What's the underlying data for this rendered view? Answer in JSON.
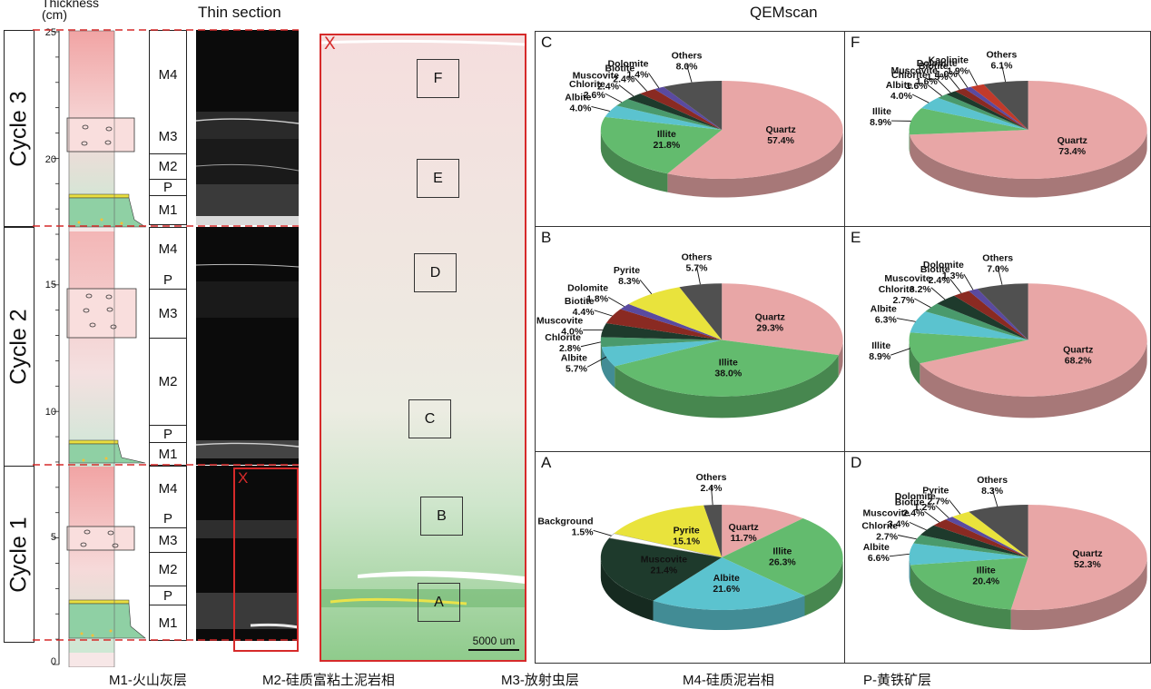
{
  "headers": {
    "thickness": "Thickness\n(cm)",
    "thin_section": "Thin section",
    "qemscan": "QEMscan"
  },
  "cycles": [
    "Cycle 3",
    "Cycle 2",
    "Cycle 1"
  ],
  "scale_ticks": [
    "25",
    "20",
    "15",
    "10",
    "5",
    "0"
  ],
  "units": {
    "cycle3": [
      "M4",
      "M3",
      "M2",
      "P",
      "M1"
    ],
    "cycle2": [
      "M4",
      "P",
      "M3",
      "M2",
      "P",
      "M1"
    ],
    "cycle1": [
      "M4",
      "P",
      "M3",
      "M2",
      "P",
      "M1"
    ]
  },
  "thin_marker": "X",
  "qemscan_marker": "X",
  "qemscan_boxes": [
    "F",
    "E",
    "D",
    "C",
    "B",
    "A"
  ],
  "scale_bar": "5000 um",
  "legend": [
    "M1-火山灰层",
    "M2-硅质富粘土泥岩相",
    "M3-放射虫层",
    "M4-硅质泥岩相",
    "P-黄铁矿层"
  ],
  "chart_data": [
    {
      "type": "pie",
      "panel": "C",
      "series": [
        {
          "name": "Quartz",
          "value": 57.4
        },
        {
          "name": "Illite",
          "value": 21.8
        },
        {
          "name": "Albite",
          "value": 4.0
        },
        {
          "name": "Chlorite",
          "value": 2.6
        },
        {
          "name": "Muscovite",
          "value": 2.4
        },
        {
          "name": "Biotite",
          "value": 2.4
        },
        {
          "name": "Dolomite",
          "value": 1.4
        },
        {
          "name": "Others",
          "value": 8.0
        }
      ]
    },
    {
      "type": "pie",
      "panel": "F",
      "series": [
        {
          "name": "Quartz",
          "value": 73.4
        },
        {
          "name": "Illite",
          "value": 8.9
        },
        {
          "name": "Albite",
          "value": 4.0
        },
        {
          "name": "Chlorite",
          "value": 1.6
        },
        {
          "name": "Muscovite",
          "value": 1.6
        },
        {
          "name": "Biotite",
          "value": 1.5
        },
        {
          "name": "Dolomite",
          "value": 1.0
        },
        {
          "name": "Kaolinite",
          "value": 1.9
        },
        {
          "name": "Others",
          "value": 6.1
        }
      ]
    },
    {
      "type": "pie",
      "panel": "B",
      "series": [
        {
          "name": "Quartz",
          "value": 29.3
        },
        {
          "name": "Illite",
          "value": 38.0
        },
        {
          "name": "Albite",
          "value": 5.7
        },
        {
          "name": "Chlorite",
          "value": 2.8
        },
        {
          "name": "Muscovite",
          "value": 4.0
        },
        {
          "name": "Biotite",
          "value": 4.4
        },
        {
          "name": "Dolomite",
          "value": 1.8
        },
        {
          "name": "Pyrite",
          "value": 8.3
        },
        {
          "name": "Others",
          "value": 5.7
        }
      ]
    },
    {
      "type": "pie",
      "panel": "E",
      "series": [
        {
          "name": "Quartz",
          "value": 68.2
        },
        {
          "name": "Illite",
          "value": 8.9
        },
        {
          "name": "Albite",
          "value": 6.3
        },
        {
          "name": "Chlorite",
          "value": 2.7
        },
        {
          "name": "Muscovite",
          "value": 3.2
        },
        {
          "name": "Biotite",
          "value": 2.4
        },
        {
          "name": "Dolomite",
          "value": 1.3
        },
        {
          "name": "Others",
          "value": 7.0
        }
      ]
    },
    {
      "type": "pie",
      "panel": "A",
      "series": [
        {
          "name": "Quartz",
          "value": 11.7
        },
        {
          "name": "Illite",
          "value": 26.3
        },
        {
          "name": "Albite",
          "value": 21.6
        },
        {
          "name": "Muscovite",
          "value": 21.4
        },
        {
          "name": "Background",
          "value": 1.5
        },
        {
          "name": "Pyrite",
          "value": 15.1
        },
        {
          "name": "Others",
          "value": 2.4
        }
      ]
    },
    {
      "type": "pie",
      "panel": "D",
      "series": [
        {
          "name": "Quartz",
          "value": 52.3
        },
        {
          "name": "Illite",
          "value": 20.4
        },
        {
          "name": "Albite",
          "value": 6.6
        },
        {
          "name": "Chlorite",
          "value": 2.7
        },
        {
          "name": "Muscovite",
          "value": 3.4
        },
        {
          "name": "Biotite",
          "value": 2.4
        },
        {
          "name": "Dolomite",
          "value": 1.2
        },
        {
          "name": "Pyrite",
          "value": 2.7
        },
        {
          "name": "Others",
          "value": 8.3
        }
      ]
    }
  ],
  "mineral_colors": {
    "Quartz": "#e8a6a6",
    "Illite": "#63bb6e",
    "Albite": "#5bc3cf",
    "Chlorite": "#4a9a6c",
    "Muscovite": "#1e3a2c",
    "Biotite": "#8a2a22",
    "Dolomite": "#5a4aa0",
    "Pyrite": "#e9e33c",
    "Kaolinite": "#c23a2a",
    "Others": "#505050",
    "Background": "#ffffff"
  }
}
